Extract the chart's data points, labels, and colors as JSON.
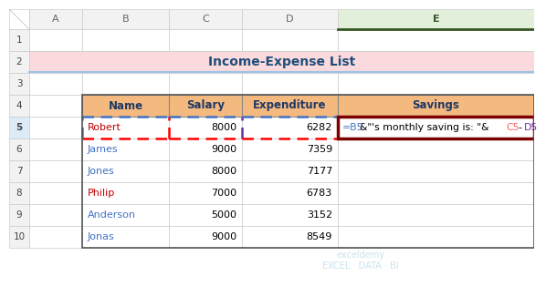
{
  "title": "Income-Expense List",
  "title_bg": "#FADADD",
  "title_color": "#1F4E79",
  "headers": [
    "Name",
    "Salary",
    "Expenditure",
    "Savings"
  ],
  "rows": [
    [
      "Robert",
      "8000",
      "6282"
    ],
    [
      "James",
      "9000",
      "7359"
    ],
    [
      "Jones",
      "8000",
      "7177"
    ],
    [
      "Philip",
      "7000",
      "6783"
    ],
    [
      "Anderson",
      "5000",
      "3152"
    ],
    [
      "Jonas",
      "9000",
      "8549"
    ]
  ],
  "col_header_labels": [
    "A",
    "B",
    "C",
    "D",
    "E"
  ],
  "row_labels": [
    "1",
    "2",
    "3",
    "4",
    "5",
    "6",
    "7",
    "8",
    "9",
    "10"
  ],
  "header_bg": "#F4B97F",
  "cell_bg": "#FFFFFF",
  "bg_color": "#FFFFFF",
  "header_text_color": "#1F3864",
  "name_colors": [
    "#C00000",
    "#4472C4",
    "#4472C4",
    "#C00000",
    "#4472C4",
    "#4472C4"
  ],
  "active_col_bg": "#E2EFDA",
  "active_col_border": "#375623",
  "active_row_bg": "#DDEBF7",
  "savings_box_color": "#7B0000",
  "formula_parts": [
    {
      "text": "=B5",
      "color": "#4472C4"
    },
    {
      "text": "&\"'s monthly saving is: \"&",
      "color": "#000000"
    },
    {
      "text": "C5",
      "color": "#FF6060"
    },
    {
      "text": "-",
      "color": "#000000"
    },
    {
      "text": "D5",
      "color": "#7030A0"
    }
  ],
  "b5_border_top": "#4472C4",
  "b5_border_bottom": "#FF0000",
  "b5_border_left": "#4472C4",
  "b5_border_right": "#FF0000",
  "c5_border_right": "#7030A0",
  "d5_border_right": "#7030A0",
  "watermark_text": "exceldemy\nEXCEL · DATA · BI",
  "watermark_color": "#B8D9E8",
  "title_underline_color": "#9DC3E6"
}
